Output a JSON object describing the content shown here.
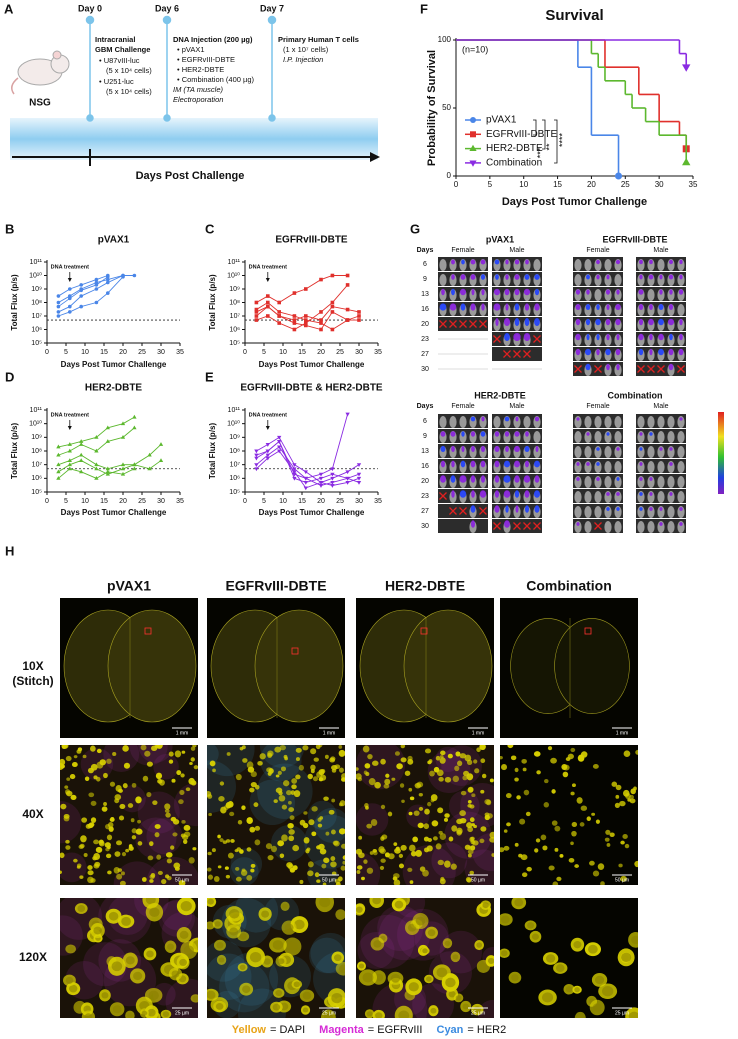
{
  "panel_a": {
    "label": "A",
    "strain": "NSG",
    "axis_label": "Days Post Challenge",
    "events": [
      {
        "day": "Day 0",
        "lines": [
          "Intracranial",
          "GBM Challenge",
          "• U87vIII-luc",
          "(5 x 10⁴ cells)",
          "• U251-luc",
          "(5 x 10⁴ cells)"
        ]
      },
      {
        "day": "Day 6",
        "lines": [
          "DNA Injection (200 µg)",
          "• pVAX1",
          "• EGFRvIII-DBTE",
          "• HER2-DBTE",
          "• Combination (400 µg)",
          "IM (TA muscle)",
          "Electroporation"
        ]
      },
      {
        "day": "Day 7",
        "lines": [
          "Primary Human T cells",
          "(1 x 10⁷ cells)",
          "I.P. Injection"
        ]
      }
    ]
  },
  "chart_data": [
    {
      "type": "step",
      "label": "F",
      "title": "Survival",
      "xlabel": "Days Post Tumor Challenge",
      "ylabel": "Probability of Survival",
      "xlim": [
        0,
        35
      ],
      "xticks": [
        0,
        5,
        10,
        15,
        20,
        25,
        30,
        35
      ],
      "ylim": [
        0,
        100
      ],
      "yticks": [
        0,
        50,
        100
      ],
      "annotations": [
        "(n=10)",
        "****",
        "**",
        "***"
      ],
      "legend": "left",
      "series": [
        {
          "name": "pVAX1",
          "color": "#4a86e8",
          "marker": "circle",
          "x": [
            0,
            18,
            20,
            24
          ],
          "values": [
            100,
            80,
            30,
            0
          ]
        },
        {
          "name": "EGFRvIII-DBTE",
          "color": "#e0302c",
          "marker": "square",
          "x": [
            0,
            22,
            27,
            30,
            33,
            34
          ],
          "values": [
            100,
            80,
            60,
            40,
            30,
            20
          ]
        },
        {
          "name": "HER2-DBTE",
          "color": "#5cb82e",
          "marker": "triangle-up",
          "x": [
            0,
            20,
            21,
            22,
            25,
            26,
            28,
            30,
            34
          ],
          "values": [
            100,
            90,
            80,
            70,
            60,
            50,
            40,
            30,
            10
          ]
        },
        {
          "name": "Combination",
          "color": "#8a2be2",
          "marker": "triangle-down",
          "x": [
            0,
            33,
            34
          ],
          "values": [
            100,
            90,
            80
          ]
        }
      ]
    },
    {
      "type": "line",
      "label": "B",
      "title": "pVAX1",
      "xlabel": "Days Post Tumor Challenge",
      "ylabel": "Total Flux (p/s)",
      "xlim": [
        0,
        35
      ],
      "xticks": [
        0,
        5,
        10,
        15,
        20,
        25,
        30,
        35
      ],
      "log_scale": true,
      "ylim": [
        100000,
        100000000000
      ],
      "yticks": [
        {
          "value": 100000,
          "label": "10⁵"
        },
        {
          "value": 1000000,
          "label": "10⁶"
        },
        {
          "value": 10000000,
          "label": "10⁷"
        },
        {
          "value": 100000000,
          "label": "10⁸"
        },
        {
          "value": 1000000000,
          "label": "10⁹"
        },
        {
          "value": 10000000000,
          "label": "10¹⁰"
        },
        {
          "value": 100000000000,
          "label": "10¹¹"
        }
      ],
      "threshold": 5000000,
      "annotation": {
        "text": "DNA treatment",
        "x": 6
      },
      "color": "#4a86e8",
      "marker": "circle",
      "series": [
        {
          "x": [
            3,
            6,
            9,
            13,
            16,
            20
          ],
          "values": [
            20000000.0,
            50000000.0,
            300000000.0,
            1000000000.0,
            3000000000.0,
            10000000000.0
          ]
        },
        {
          "x": [
            3,
            6,
            9,
            13,
            16,
            20,
            23
          ],
          "values": [
            100000000.0,
            300000000.0,
            1000000000.0,
            3000000000.0,
            5000000000.0,
            10000000000.0,
            10000000000.0
          ]
        },
        {
          "x": [
            3,
            6,
            9,
            13,
            16
          ],
          "values": [
            50000000.0,
            200000000.0,
            800000000.0,
            2000000000.0,
            8000000000.0
          ]
        },
        {
          "x": [
            3,
            6,
            9,
            13,
            16,
            20
          ],
          "values": [
            10000000.0,
            20000000.0,
            50000000.0,
            100000000.0,
            500000000.0,
            8000000000.0
          ]
        },
        {
          "x": [
            3,
            6,
            9,
            13,
            16
          ],
          "values": [
            300000000.0,
            1000000000.0,
            2000000000.0,
            5000000000.0,
            10000000000.0
          ]
        }
      ]
    },
    {
      "type": "line",
      "label": "C",
      "title": "EGFRvIII-DBTE",
      "xlabel": "Days Post Tumor Challenge",
      "ylabel": "Total Flux (p/s)",
      "xlim": [
        0,
        35
      ],
      "xticks": [
        0,
        5,
        10,
        15,
        20,
        25,
        30,
        35
      ],
      "log_scale": true,
      "ylim": [
        100000,
        100000000000
      ],
      "yticks": [
        {
          "value": 100000,
          "label": "10⁵"
        },
        {
          "value": 1000000,
          "label": "10⁶"
        },
        {
          "value": 10000000,
          "label": "10⁷"
        },
        {
          "value": 100000000,
          "label": "10⁸"
        },
        {
          "value": 1000000000,
          "label": "10⁹"
        },
        {
          "value": 10000000000,
          "label": "10¹⁰"
        },
        {
          "value": 100000000000,
          "label": "10¹¹"
        }
      ],
      "threshold": 5000000,
      "annotation": {
        "text": "DNA treatment",
        "x": 6
      },
      "color": "#e0302c",
      "marker": "square",
      "series": [
        {
          "x": [
            3,
            6,
            9,
            13,
            16,
            20,
            23,
            27
          ],
          "values": [
            100000000.0,
            300000000.0,
            100000000.0,
            500000000.0,
            1000000000.0,
            5000000000.0,
            10000000000.0,
            10000000000.0
          ]
        },
        {
          "x": [
            3,
            6,
            9,
            13,
            16,
            20,
            23,
            27,
            30
          ],
          "values": [
            10000000.0,
            50000000.0,
            10000000.0,
            5000000.0,
            10000000.0,
            5000000.0,
            50000000.0,
            30000000.0,
            20000000.0
          ]
        },
        {
          "x": [
            3,
            6,
            9,
            13,
            16,
            20,
            23,
            27,
            30
          ],
          "values": [
            20000000.0,
            50000000.0,
            10000000.0,
            3000000.0,
            2000000.0,
            1000000.0,
            20000000.0,
            5000000.0,
            10000000.0
          ]
        },
        {
          "x": [
            3,
            6,
            9,
            13,
            16,
            20,
            23,
            27
          ],
          "values": [
            5000000.0,
            10000000.0,
            3000000.0,
            1000000.0,
            3000000.0,
            20000000.0,
            100000000.0,
            2000000000.0
          ]
        },
        {
          "x": [
            3,
            6,
            9,
            13,
            16,
            20,
            23,
            27,
            30
          ],
          "values": [
            30000000.0,
            100000000.0,
            20000000.0,
            10000000.0,
            5000000.0,
            3000000.0,
            1000000.0,
            5000000.0,
            5000000.0
          ]
        }
      ]
    },
    {
      "type": "line",
      "label": "D",
      "title": "HER2-DBTE",
      "xlabel": "Days Post Tumor Challenge",
      "ylabel": "Total Flux (p/s)",
      "xlim": [
        0,
        35
      ],
      "xticks": [
        0,
        5,
        10,
        15,
        20,
        25,
        30,
        35
      ],
      "log_scale": true,
      "ylim": [
        100000,
        100000000000
      ],
      "yticks": [
        {
          "value": 100000,
          "label": "10⁵"
        },
        {
          "value": 1000000,
          "label": "10⁶"
        },
        {
          "value": 10000000,
          "label": "10⁷"
        },
        {
          "value": 100000000,
          "label": "10⁸"
        },
        {
          "value": 1000000000,
          "label": "10⁹"
        },
        {
          "value": 10000000000,
          "label": "10¹⁰"
        },
        {
          "value": 100000000000,
          "label": "10¹¹"
        }
      ],
      "threshold": 5000000,
      "annotation": {
        "text": "DNA treatment",
        "x": 6
      },
      "color": "#5cb82e",
      "marker": "triangle-up",
      "series": [
        {
          "x": [
            3,
            6,
            9,
            13,
            16,
            20,
            23
          ],
          "values": [
            200000000.0,
            300000000.0,
            500000000.0,
            1000000000.0,
            5000000000.0,
            10000000000.0,
            30000000000.0
          ]
        },
        {
          "x": [
            3,
            6,
            9,
            13,
            16,
            20,
            23
          ],
          "values": [
            50000000.0,
            100000000.0,
            300000000.0,
            100000000.0,
            500000000.0,
            1000000000.0,
            5000000000.0
          ]
        },
        {
          "x": [
            3,
            6,
            9,
            13,
            16,
            20,
            23,
            27,
            30
          ],
          "values": [
            10000000.0,
            20000000.0,
            50000000.0,
            10000000.0,
            5000000.0,
            10000000.0,
            10000000.0,
            5000000.0,
            20000000.0
          ]
        },
        {
          "x": [
            3,
            6,
            9,
            13,
            16,
            20,
            23,
            27,
            30
          ],
          "values": [
            3000000.0,
            10000000.0,
            20000000.0,
            5000000.0,
            2000000.0,
            5000000.0,
            10000000.0,
            50000000.0,
            300000000.0
          ]
        },
        {
          "x": [
            3,
            6,
            9,
            13,
            16,
            20,
            23
          ],
          "values": [
            1000000.0,
            5000000.0,
            3000000.0,
            1000000.0,
            3000000.0,
            2000000.0,
            5000000.0
          ]
        }
      ]
    },
    {
      "type": "line",
      "label": "E",
      "title": "EGFRvIII-DBTE & HER2-DBTE",
      "xlabel": "Days Post Tumor Challenge",
      "ylabel": "Total Flux (p/s)",
      "xlim": [
        0,
        35
      ],
      "xticks": [
        0,
        5,
        10,
        15,
        20,
        25,
        30,
        35
      ],
      "log_scale": true,
      "ylim": [
        100000,
        100000000000
      ],
      "yticks": [
        {
          "value": 100000,
          "label": "10⁵"
        },
        {
          "value": 1000000,
          "label": "10⁶"
        },
        {
          "value": 10000000,
          "label": "10⁷"
        },
        {
          "value": 100000000,
          "label": "10⁸"
        },
        {
          "value": 1000000000,
          "label": "10⁹"
        },
        {
          "value": 10000000000,
          "label": "10¹⁰"
        },
        {
          "value": 100000000000,
          "label": "10¹¹"
        }
      ],
      "threshold": 5000000,
      "annotation": {
        "text": "DNA treatment",
        "x": 6
      },
      "color": "#8a2be2",
      "marker": "triangle-down",
      "series": [
        {
          "x": [
            3,
            6,
            9,
            13,
            16,
            20,
            23,
            27
          ],
          "values": [
            50000000.0,
            100000000.0,
            500000000.0,
            2000000.0,
            1000000.0,
            2000000.0,
            5000000.0,
            50000000000.0
          ]
        },
        {
          "x": [
            3,
            6,
            9,
            13,
            16,
            20,
            23,
            27,
            30
          ],
          "values": [
            100000000.0,
            300000000.0,
            1000000000.0,
            10000000.0,
            3000000.0,
            500000.0,
            1000000.0,
            3000000.0,
            10000000.0
          ]
        },
        {
          "x": [
            3,
            6,
            9,
            13,
            16,
            20,
            23,
            27,
            30
          ],
          "values": [
            10000000.0,
            50000000.0,
            200000000.0,
            5000000.0,
            1000000.0,
            300000.0,
            500000.0,
            1000000.0,
            500000.0
          ]
        },
        {
          "x": [
            3,
            6,
            9,
            13,
            16,
            20,
            23,
            27,
            30
          ],
          "values": [
            30000000.0,
            100000000.0,
            500000000.0,
            1000000.0,
            500000.0,
            1000000.0,
            2000000.0,
            1000000.0,
            2000000.0
          ]
        },
        {
          "x": [
            3,
            6,
            9,
            13,
            16,
            20,
            23,
            27,
            30
          ],
          "values": [
            5000000.0,
            30000000.0,
            100000000.0,
            3000000.0,
            200000.0,
            500000.0,
            300000.0,
            500000.0,
            1000000.0
          ]
        }
      ]
    }
  ],
  "panel_g": {
    "label": "G",
    "days_label": "Days",
    "days": [
      "6",
      "9",
      "13",
      "16",
      "20",
      "23",
      "27",
      "30"
    ],
    "groups": [
      {
        "name": "pVAX1",
        "sexes": [
          "Female",
          "Male"
        ]
      },
      {
        "name": "EGFRvIII-DBTE",
        "sexes": [
          "Female",
          "Male"
        ]
      },
      {
        "name": "HER2-DBTE",
        "sexes": [
          "Female",
          "Male"
        ]
      },
      {
        "name": "Combination",
        "sexes": [
          "Female",
          "Male"
        ]
      }
    ]
  },
  "panel_h": {
    "label": "H",
    "columns": [
      "pVAX1",
      "EGFRvIII-DBTE",
      "HER2-DBTE",
      "Combination"
    ],
    "rows": [
      {
        "label": "10X",
        "sub": "(Stitch)",
        "scale": "1 mm"
      },
      {
        "label": "40X",
        "scale": "50 µm"
      },
      {
        "label": "120X",
        "scale": "25 µm"
      }
    ],
    "legend": [
      {
        "name": "Yellow",
        "meaning": "= DAPI",
        "color": "#e8a317"
      },
      {
        "name": "Magenta",
        "meaning": "= EGFRvIII",
        "color": "#d62bd6"
      },
      {
        "name": "Cyan",
        "meaning": "= HER2",
        "color": "#3b8be0"
      }
    ]
  }
}
